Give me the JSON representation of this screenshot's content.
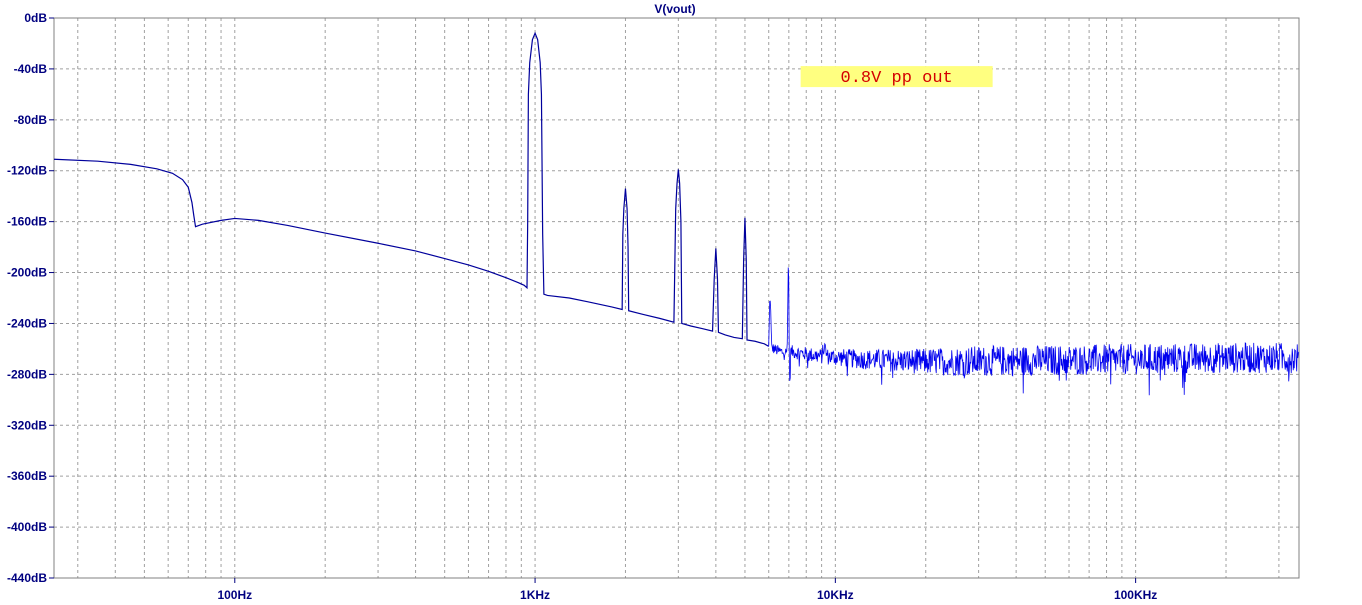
{
  "chart_data": {
    "type": "line",
    "title": "V(vout)",
    "x_scale": "log",
    "xlim": [
      25,
      350000
    ],
    "ylim": [
      -440,
      0
    ],
    "grid": true,
    "x_ticks": [
      {
        "value": 100,
        "label": "100Hz"
      },
      {
        "value": 1000,
        "label": "1KHz"
      },
      {
        "value": 10000,
        "label": "10KHz"
      },
      {
        "value": 100000,
        "label": "100KHz"
      }
    ],
    "y_ticks": [
      {
        "value": 0,
        "label": "0dB"
      },
      {
        "value": -40,
        "label": "-40dB"
      },
      {
        "value": -80,
        "label": "-80dB"
      },
      {
        "value": -120,
        "label": "-120dB"
      },
      {
        "value": -160,
        "label": "-160dB"
      },
      {
        "value": -200,
        "label": "-200dB"
      },
      {
        "value": -240,
        "label": "-240dB"
      },
      {
        "value": -280,
        "label": "-280dB"
      },
      {
        "value": -320,
        "label": "-320dB"
      },
      {
        "value": -360,
        "label": "-360dB"
      },
      {
        "value": -400,
        "label": "-400dB"
      },
      {
        "value": -440,
        "label": "-440dB"
      }
    ],
    "annotation": {
      "text": "0.8V pp out",
      "freq": 16000,
      "db": -48,
      "bg_color": "#ffff80",
      "text_color": "#d40000"
    },
    "colors": {
      "trace": "#0000cc",
      "grid": "#a0a0a0",
      "axis_text": "#000080"
    },
    "series": [
      {
        "color": "#00009c",
        "points": [
          [
            25,
            -111
          ],
          [
            35,
            -112.5
          ],
          [
            45,
            -115
          ],
          [
            55,
            -118.5
          ],
          [
            62,
            -122
          ],
          [
            67,
            -127
          ],
          [
            70,
            -133
          ],
          [
            72,
            -145
          ],
          [
            73,
            -155
          ],
          [
            74,
            -164
          ],
          [
            78,
            -162
          ],
          [
            90,
            -159
          ],
          [
            100,
            -157.5
          ],
          [
            120,
            -159
          ],
          [
            150,
            -163
          ],
          [
            200,
            -169
          ],
          [
            300,
            -177
          ],
          [
            400,
            -183
          ],
          [
            500,
            -189
          ],
          [
            600,
            -194
          ],
          [
            700,
            -199
          ],
          [
            800,
            -204
          ],
          [
            880,
            -208
          ],
          [
            920,
            -210
          ],
          [
            940,
            -212
          ],
          [
            945,
            -160
          ],
          [
            950,
            -60
          ],
          [
            960,
            -35
          ],
          [
            980,
            -17
          ],
          [
            1000,
            -12
          ],
          [
            1020,
            -17
          ],
          [
            1040,
            -35
          ],
          [
            1050,
            -60
          ],
          [
            1060,
            -170
          ],
          [
            1070,
            -217
          ],
          [
            1100,
            -218
          ],
          [
            1300,
            -220
          ],
          [
            1500,
            -223
          ],
          [
            1800,
            -227
          ],
          [
            1950,
            -229
          ],
          [
            1960,
            -170
          ],
          [
            1975,
            -150
          ],
          [
            2000,
            -134
          ],
          [
            2025,
            -150
          ],
          [
            2040,
            -180
          ],
          [
            2050,
            -230
          ],
          [
            2300,
            -233
          ],
          [
            2600,
            -236
          ],
          [
            2900,
            -239
          ],
          [
            2940,
            -150
          ],
          [
            2970,
            -130
          ],
          [
            3000,
            -119
          ],
          [
            3030,
            -130
          ],
          [
            3060,
            -160
          ],
          [
            3080,
            -240
          ],
          [
            3300,
            -242
          ],
          [
            3600,
            -244
          ],
          [
            3900,
            -246
          ],
          [
            3950,
            -205
          ],
          [
            4000,
            -181
          ],
          [
            4050,
            -205
          ],
          [
            4080,
            -247
          ],
          [
            4300,
            -249
          ],
          [
            4600,
            -251
          ],
          [
            4900,
            -252
          ],
          [
            4950,
            -190
          ],
          [
            5000,
            -157
          ],
          [
            5050,
            -190
          ],
          [
            5080,
            -253
          ],
          [
            5400,
            -254
          ],
          [
            5800,
            -256
          ],
          [
            6000,
            -258
          ],
          [
            6030,
            -235
          ],
          [
            6060,
            -215
          ],
          [
            6100,
            -235
          ],
          [
            6130,
            -259
          ],
          [
            6500,
            -262
          ],
          [
            6900,
            -263
          ],
          [
            6940,
            -230
          ],
          [
            6970,
            -195
          ],
          [
            7000,
            -206
          ],
          [
            7030,
            -280
          ],
          [
            7060,
            -295
          ],
          [
            7090,
            -262
          ],
          [
            8000,
            -264
          ],
          [
            9000,
            -266
          ],
          [
            9200,
            -258
          ],
          [
            9400,
            -266
          ],
          [
            12000,
            -268
          ],
          [
            20000,
            -270
          ],
          [
            50000,
            -269
          ],
          [
            100000,
            -268
          ],
          [
            200000,
            -267
          ],
          [
            350000,
            -267
          ]
        ],
        "noise": {
          "start_freq": 6000,
          "end_freq": 350000,
          "amplitude_db": 12
        }
      }
    ]
  }
}
